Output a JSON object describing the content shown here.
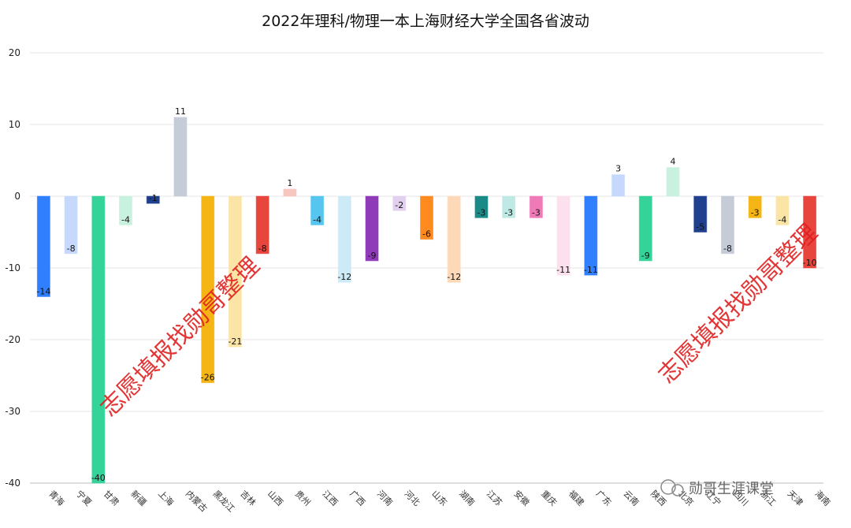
{
  "chart_data": {
    "type": "bar",
    "title": "2022年理科/物理一本上海财经大学全国各省波动",
    "xlabel": "",
    "ylabel": "",
    "ylim": [
      -40,
      20
    ],
    "yticks": [
      20,
      10,
      0,
      -10,
      -20,
      -30,
      -40
    ],
    "grid": true,
    "legend": "none",
    "categories": [
      "青海",
      "宁夏",
      "甘肃",
      "新疆",
      "上海",
      "内蒙古",
      "黑龙江",
      "吉林",
      "山西",
      "贵州",
      "江西",
      "广西",
      "河南",
      "河北",
      "山东",
      "湖南",
      "江苏",
      "安徽",
      "重庆",
      "福建",
      "广东",
      "云南",
      "陕西",
      "北京",
      "辽宁",
      "四川",
      "浙江",
      "天津",
      "海南"
    ],
    "values": [
      -14,
      -8,
      -40,
      -4,
      -1,
      11,
      -26,
      -21,
      -8,
      1,
      -4,
      -12,
      -9,
      -2,
      -6,
      -12,
      -3,
      -3,
      -3,
      -11,
      -11,
      3,
      -9,
      4,
      -5,
      -8,
      -3,
      -4,
      -10
    ],
    "colors": [
      "#2f7fff",
      "#c6d8fb",
      "#34d399",
      "#c9f1e0",
      "#1f3f8f",
      "#c5ccd8",
      "#f5b514",
      "#fbe5a6",
      "#e8453c",
      "#f7c6c0",
      "#56c5ef",
      "#cdeaf7",
      "#8f3ab8",
      "#e2d0ee",
      "#ff8a1f",
      "#fdd8b9",
      "#1a8a86",
      "#bfe9e5",
      "#f07ab8",
      "#fde0ee",
      "#2f7fff",
      "#c6d8fb",
      "#34d399",
      "#c9f1e0",
      "#1f3f8f",
      "#c5ccd8",
      "#f5b514",
      "#fbe5a6",
      "#e8453c"
    ]
  },
  "watermark_text": "志愿填报找勋哥整理",
  "brand_text": "勋哥生涯课堂"
}
